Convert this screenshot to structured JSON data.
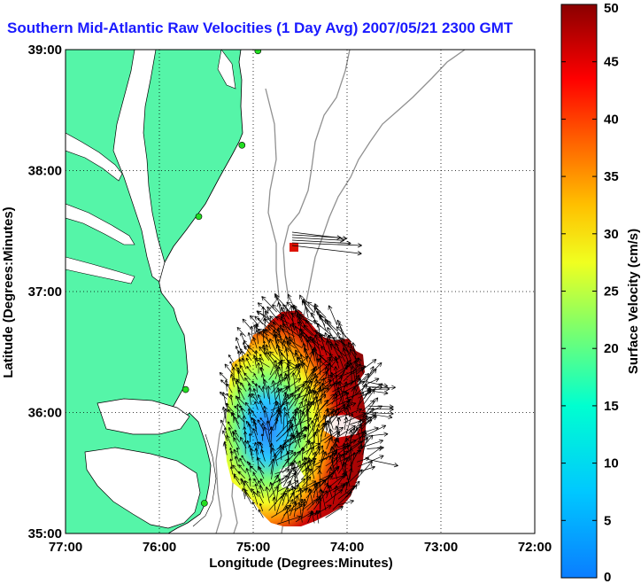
{
  "title": "Southern Mid-Atlantic Raw Velocities (1 Day Avg) 2007/05/21 2300 GMT",
  "map": {
    "xlabel": "Longitude (Degrees:Minutes)",
    "ylabel": "Latitude (Degrees:Minutes)",
    "x_ticks": [
      "77:00",
      "76:00",
      "75:00",
      "74:00",
      "73:00",
      "72:00"
    ],
    "y_ticks": [
      "39:00",
      "38:00",
      "37:00",
      "36:00",
      "35:00"
    ],
    "xlim": [
      -77,
      -72
    ],
    "ylim": [
      35,
      39
    ],
    "grid": "dotted",
    "land_color": "#55f5a8",
    "water_color": "#ffffff"
  },
  "colorbar": {
    "label": "Surface Velocity (cm/s)",
    "ticks": [
      "50",
      "45",
      "40",
      "35",
      "30",
      "25",
      "20",
      "15",
      "10",
      "5",
      "0"
    ],
    "range": [
      0,
      50
    ],
    "colormap": "jet"
  },
  "stations": [
    {
      "lon": -74.95,
      "lat": 38.99
    },
    {
      "lon": -75.12,
      "lat": 38.21
    },
    {
      "lon": -75.58,
      "lat": 37.62
    },
    {
      "lon": -75.72,
      "lat": 36.19
    },
    {
      "lon": -75.52,
      "lat": 35.25
    }
  ]
}
